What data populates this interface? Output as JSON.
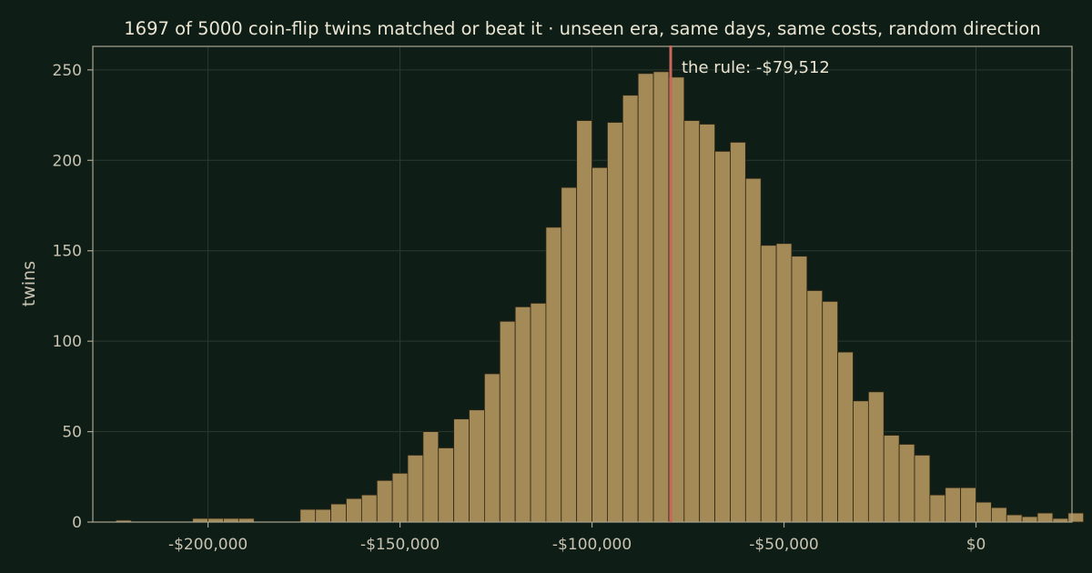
{
  "chart_data": {
    "type": "bar",
    "title": "1697 of 5000 coin-flip twins matched or beat it  ·  unseen era, same days, same costs, random direction",
    "ylabel": "twins",
    "xlabel": "",
    "xlim": [
      -230000,
      25000
    ],
    "ylim": [
      0,
      263
    ],
    "grid": true,
    "bin_width": 4000,
    "bin_start": -224000,
    "counts": [
      1,
      0,
      0,
      0,
      0,
      2,
      2,
      2,
      2,
      0,
      0,
      0,
      7,
      7,
      10,
      13,
      15,
      23,
      27,
      37,
      50,
      41,
      57,
      62,
      82,
      111,
      119,
      121,
      163,
      185,
      222,
      196,
      221,
      236,
      248,
      249,
      246,
      222,
      220,
      205,
      210,
      190,
      153,
      154,
      147,
      128,
      122,
      94,
      67,
      72,
      48,
      43,
      37,
      15,
      19,
      19,
      11,
      8,
      4,
      3,
      5,
      2,
      5
    ],
    "x_ticks": [
      {
        "value": -200000,
        "label": "-$200,000"
      },
      {
        "value": -150000,
        "label": "-$150,000"
      },
      {
        "value": -100000,
        "label": "-$100,000"
      },
      {
        "value": -50000,
        "label": "-$50,000"
      },
      {
        "value": 0,
        "label": "$0"
      }
    ],
    "y_ticks": [
      {
        "value": 0,
        "label": "0"
      },
      {
        "value": 50,
        "label": "50"
      },
      {
        "value": 100,
        "label": "100"
      },
      {
        "value": 150,
        "label": "150"
      },
      {
        "value": 200,
        "label": "200"
      },
      {
        "value": 250,
        "label": "250"
      }
    ],
    "marker": {
      "value": -79512,
      "label": "the rule: -$79,512",
      "color": "#c9675a"
    },
    "colors": {
      "bar": "#a48a57",
      "background": "#0f1d17",
      "marker": "#c9675a"
    }
  }
}
